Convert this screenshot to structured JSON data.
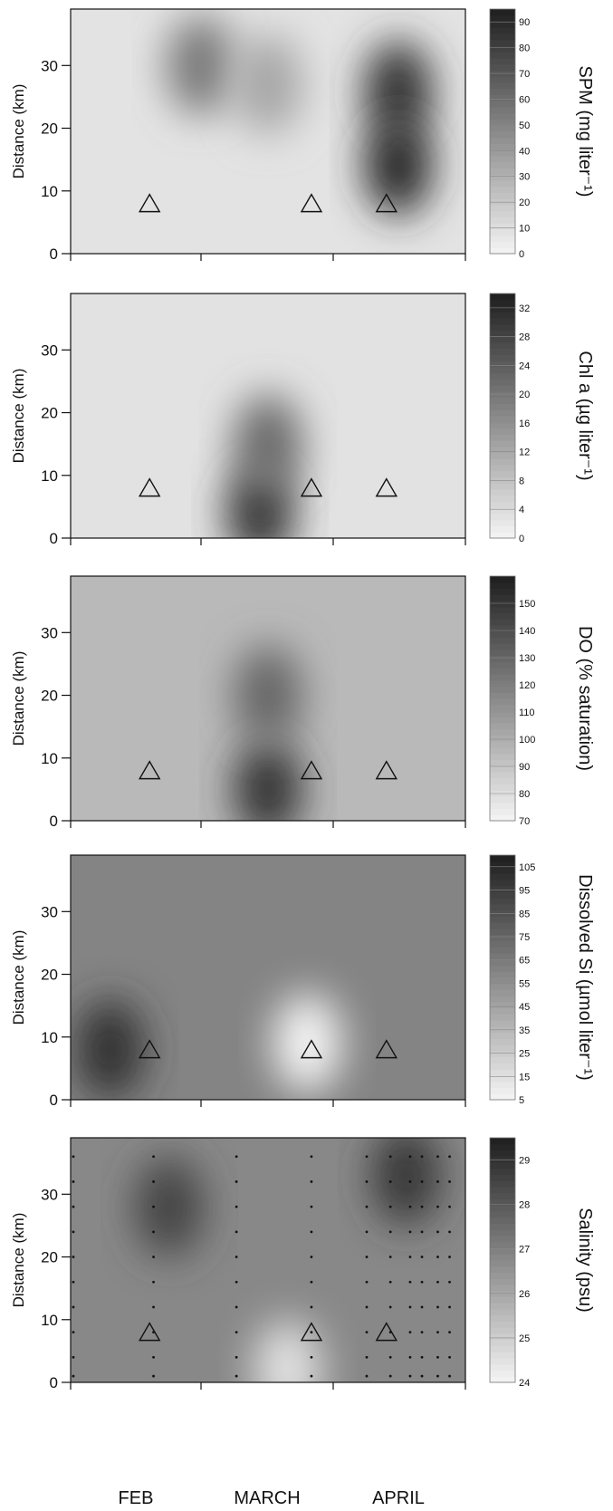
{
  "figure": {
    "x_axis_months": [
      "FEB",
      "MARCH",
      "APRIL"
    ],
    "colors": {
      "ink": "#111111",
      "paper": "#ffffff",
      "dark": "#1a1a1a"
    }
  },
  "chart_data": [
    {
      "type": "heatmap",
      "ylabel": "Distance (km)",
      "yticks": [
        0,
        10,
        20,
        30
      ],
      "ylim": [
        0,
        39
      ],
      "colorbar_label": "SPM (mg liter⁻¹)",
      "colorbar_ticks": [
        0,
        10,
        20,
        30,
        40,
        50,
        60,
        70,
        80,
        90
      ],
      "colorbar_range": [
        0,
        95
      ],
      "hotspots": [
        {
          "x": 0.33,
          "y": 30,
          "value": 55
        },
        {
          "x": 0.83,
          "y": 26,
          "value": 85
        },
        {
          "x": 0.83,
          "y": 14,
          "value": 90
        },
        {
          "x": 0.5,
          "y": 27,
          "value": 35
        }
      ],
      "background_value": 8,
      "triangles": [
        {
          "x": 0.2,
          "y": 8
        },
        {
          "x": 0.61,
          "y": 8
        },
        {
          "x": 0.8,
          "y": 8
        }
      ],
      "grid": false
    },
    {
      "type": "heatmap",
      "ylabel": "Distance (km)",
      "yticks": [
        0,
        10,
        20,
        30
      ],
      "ylim": [
        0,
        39
      ],
      "colorbar_label": "Chl a (µg liter⁻¹)",
      "colorbar_ticks": [
        0,
        4,
        8,
        12,
        16,
        20,
        24,
        28,
        32
      ],
      "colorbar_range": [
        0,
        34
      ],
      "hotspots": [
        {
          "x": 0.48,
          "y": 4,
          "value": 30
        },
        {
          "x": 0.5,
          "y": 15,
          "value": 22
        }
      ],
      "background_value": 3,
      "triangles": [
        {
          "x": 0.2,
          "y": 8
        },
        {
          "x": 0.61,
          "y": 8
        },
        {
          "x": 0.8,
          "y": 8
        }
      ],
      "grid": false
    },
    {
      "type": "heatmap",
      "ylabel": "Distance (km)",
      "yticks": [
        0,
        10,
        20,
        30
      ],
      "ylim": [
        0,
        39
      ],
      "colorbar_label": "DO (% saturation)",
      "colorbar_ticks": [
        70,
        80,
        90,
        100,
        110,
        120,
        130,
        140,
        150
      ],
      "colorbar_range": [
        70,
        160
      ],
      "hotspots": [
        {
          "x": 0.5,
          "y": 5,
          "value": 150
        },
        {
          "x": 0.5,
          "y": 20,
          "value": 130
        }
      ],
      "background_value": 95,
      "triangles": [
        {
          "x": 0.2,
          "y": 8
        },
        {
          "x": 0.61,
          "y": 8
        },
        {
          "x": 0.8,
          "y": 8
        }
      ],
      "grid": false
    },
    {
      "type": "heatmap",
      "ylabel": "Distance (km)",
      "yticks": [
        0,
        10,
        20,
        30
      ],
      "ylim": [
        0,
        39
      ],
      "colorbar_label": "Dissolved Si (µmol liter⁻¹)",
      "colorbar_ticks": [
        5,
        15,
        25,
        35,
        45,
        55,
        65,
        75,
        85,
        95,
        105
      ],
      "colorbar_range": [
        5,
        110
      ],
      "hotspots": [
        {
          "x": 0.1,
          "y": 8,
          "value": 100
        },
        {
          "x": 0.6,
          "y": 9,
          "value": 5
        }
      ],
      "background_value": 60,
      "triangles": [
        {
          "x": 0.2,
          "y": 8
        },
        {
          "x": 0.61,
          "y": 8
        },
        {
          "x": 0.8,
          "y": 8
        }
      ],
      "grid": false
    },
    {
      "type": "heatmap",
      "ylabel": "Distance (km)",
      "yticks": [
        0,
        10,
        20,
        30
      ],
      "ylim": [
        0,
        39
      ],
      "colorbar_label": "Salinity (psu)",
      "colorbar_ticks": [
        24,
        25,
        26,
        27,
        28,
        29
      ],
      "colorbar_range": [
        24,
        29.5
      ],
      "hotspots": [
        {
          "x": 0.25,
          "y": 28,
          "value": 28.5
        },
        {
          "x": 0.85,
          "y": 33,
          "value": 28.8
        },
        {
          "x": 0.55,
          "y": 2,
          "value": 24.5
        }
      ],
      "background_value": 26.8,
      "triangles": [
        {
          "x": 0.2,
          "y": 8
        },
        {
          "x": 0.61,
          "y": 8
        },
        {
          "x": 0.8,
          "y": 8
        }
      ],
      "grid": false,
      "sample_columns": [
        0.0,
        0.21,
        0.42,
        0.61,
        0.75,
        0.81,
        0.86,
        0.89,
        0.93,
        0.96
      ],
      "sample_depths": [
        1,
        4,
        8,
        12,
        16,
        20,
        24,
        28,
        32,
        36
      ]
    }
  ]
}
